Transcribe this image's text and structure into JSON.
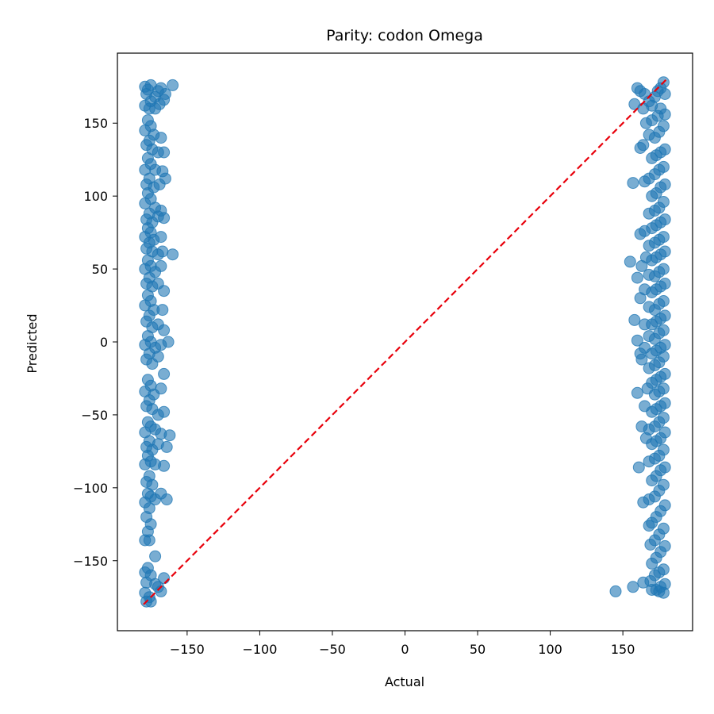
{
  "chart_data": {
    "type": "scatter",
    "title": "Parity: codon Omega",
    "xlabel": "Actual",
    "ylabel": "Predicted",
    "xlim": [
      -198,
      198
    ],
    "ylim": [
      -198,
      198
    ],
    "x_ticks": [
      -150,
      -100,
      -50,
      0,
      50,
      100,
      150
    ],
    "y_ticks": [
      -150,
      -100,
      -50,
      0,
      50,
      100,
      150
    ],
    "x_tick_labels": [
      "−150",
      "−100",
      "−50",
      "0",
      "50",
      "100",
      "150"
    ],
    "y_tick_labels": [
      "−150",
      "−100",
      "−50",
      "0",
      "50",
      "100",
      "150"
    ],
    "grid": false,
    "reference_line": {
      "x": [
        -180,
        180
      ],
      "y": [
        -180,
        180
      ],
      "color": "#e8000b",
      "style": "dashed"
    },
    "marker_color": "#1f77b4",
    "marker_alpha": 0.6,
    "series": [
      {
        "values": [
          [
            -179,
            175
          ],
          [
            -177,
            173
          ],
          [
            -175,
            176
          ],
          [
            -178,
            170
          ],
          [
            -172,
            168
          ],
          [
            -170,
            172
          ],
          [
            -168,
            174
          ],
          [
            -165,
            170
          ],
          [
            -160,
            176
          ],
          [
            -166,
            166
          ],
          [
            -175,
            165
          ],
          [
            -179,
            162
          ],
          [
            -176,
            160
          ],
          [
            -172,
            160
          ],
          [
            -169,
            163
          ],
          [
            -177,
            152
          ],
          [
            -175,
            148
          ],
          [
            -179,
            145
          ],
          [
            -173,
            142
          ],
          [
            -168,
            140
          ],
          [
            -176,
            138
          ],
          [
            -178,
            135
          ],
          [
            -174,
            132
          ],
          [
            -170,
            130
          ],
          [
            -166,
            130
          ],
          [
            -177,
            126
          ],
          [
            -175,
            122
          ],
          [
            -179,
            118
          ],
          [
            -172,
            118
          ],
          [
            -167,
            117
          ],
          [
            -176,
            112
          ],
          [
            -178,
            108
          ],
          [
            -173,
            106
          ],
          [
            -169,
            108
          ],
          [
            -165,
            112
          ],
          [
            -177,
            102
          ],
          [
            -175,
            98
          ],
          [
            -179,
            95
          ],
          [
            -172,
            92
          ],
          [
            -168,
            90
          ],
          [
            -176,
            88
          ],
          [
            -178,
            84
          ],
          [
            -174,
            82
          ],
          [
            -170,
            86
          ],
          [
            -166,
            85
          ],
          [
            -177,
            78
          ],
          [
            -175,
            75
          ],
          [
            -179,
            72
          ],
          [
            -173,
            70
          ],
          [
            -168,
            72
          ],
          [
            -176,
            68
          ],
          [
            -178,
            64
          ],
          [
            -174,
            62
          ],
          [
            -170,
            60
          ],
          [
            -167,
            62
          ],
          [
            -160,
            60
          ],
          [
            -177,
            56
          ],
          [
            -175,
            52
          ],
          [
            -179,
            50
          ],
          [
            -172,
            48
          ],
          [
            -168,
            52
          ],
          [
            -176,
            44
          ],
          [
            -178,
            40
          ],
          [
            -174,
            38
          ],
          [
            -170,
            40
          ],
          [
            -166,
            35
          ],
          [
            -177,
            32
          ],
          [
            -175,
            28
          ],
          [
            -179,
            25
          ],
          [
            -173,
            22
          ],
          [
            -167,
            22
          ],
          [
            -176,
            18
          ],
          [
            -178,
            14
          ],
          [
            -174,
            10
          ],
          [
            -170,
            12
          ],
          [
            -166,
            8
          ],
          [
            -177,
            4
          ],
          [
            -175,
            0
          ],
          [
            -179,
            -2
          ],
          [
            -172,
            -4
          ],
          [
            -168,
            -2
          ],
          [
            -163,
            0
          ],
          [
            -176,
            -8
          ],
          [
            -178,
            -12
          ],
          [
            -174,
            -15
          ],
          [
            -170,
            -10
          ],
          [
            -166,
            -22
          ],
          [
            -177,
            -26
          ],
          [
            -175,
            -30
          ],
          [
            -179,
            -34
          ],
          [
            -173,
            -36
          ],
          [
            -168,
            -32
          ],
          [
            -176,
            -40
          ],
          [
            -178,
            -44
          ],
          [
            -174,
            -46
          ],
          [
            -170,
            -50
          ],
          [
            -166,
            -48
          ],
          [
            -177,
            -55
          ],
          [
            -175,
            -58
          ],
          [
            -179,
            -62
          ],
          [
            -172,
            -60
          ],
          [
            -168,
            -63
          ],
          [
            -162,
            -64
          ],
          [
            -176,
            -68
          ],
          [
            -178,
            -72
          ],
          [
            -174,
            -74
          ],
          [
            -170,
            -70
          ],
          [
            -164,
            -72
          ],
          [
            -177,
            -78
          ],
          [
            -175,
            -82
          ],
          [
            -179,
            -84
          ],
          [
            -172,
            -84
          ],
          [
            -166,
            -85
          ],
          [
            -176,
            -92
          ],
          [
            -178,
            -96
          ],
          [
            -174,
            -98
          ],
          [
            -177,
            -104
          ],
          [
            -175,
            -106
          ],
          [
            -179,
            -110
          ],
          [
            -172,
            -108
          ],
          [
            -168,
            -104
          ],
          [
            -164,
            -108
          ],
          [
            -176,
            -114
          ],
          [
            -178,
            -120
          ],
          [
            -175,
            -125
          ],
          [
            -177,
            -130
          ],
          [
            -179,
            -136
          ],
          [
            -176,
            -136
          ],
          [
            -172,
            -147
          ],
          [
            -177,
            -155
          ],
          [
            -179,
            -158
          ],
          [
            -175,
            -160
          ],
          [
            -178,
            -165
          ],
          [
            -166,
            -162
          ],
          [
            -172,
            -166
          ],
          [
            -179,
            -172
          ],
          [
            -176,
            -175
          ],
          [
            -178,
            -178
          ],
          [
            -175,
            -178
          ],
          [
            -168,
            -171
          ],
          [
            -170,
            -168
          ],
          [
            178,
            178
          ],
          [
            176,
            174
          ],
          [
            179,
            170
          ],
          [
            174,
            172
          ],
          [
            172,
            168
          ],
          [
            168,
            165
          ],
          [
            165,
            170
          ],
          [
            162,
            172
          ],
          [
            160,
            174
          ],
          [
            158,
            163
          ],
          [
            164,
            160
          ],
          [
            170,
            162
          ],
          [
            176,
            160
          ],
          [
            179,
            156
          ],
          [
            174,
            155
          ],
          [
            170,
            152
          ],
          [
            166,
            150
          ],
          [
            178,
            148
          ],
          [
            175,
            144
          ],
          [
            172,
            140
          ],
          [
            168,
            142
          ],
          [
            164,
            135
          ],
          [
            162,
            133
          ],
          [
            179,
            132
          ],
          [
            176,
            130
          ],
          [
            173,
            128
          ],
          [
            170,
            126
          ],
          [
            178,
            120
          ],
          [
            175,
            118
          ],
          [
            172,
            115
          ],
          [
            168,
            112
          ],
          [
            165,
            110
          ],
          [
            157,
            109
          ],
          [
            179,
            108
          ],
          [
            176,
            106
          ],
          [
            173,
            102
          ],
          [
            170,
            100
          ],
          [
            178,
            96
          ],
          [
            175,
            92
          ],
          [
            172,
            90
          ],
          [
            168,
            88
          ],
          [
            179,
            84
          ],
          [
            176,
            82
          ],
          [
            173,
            80
          ],
          [
            170,
            78
          ],
          [
            165,
            76
          ],
          [
            162,
            74
          ],
          [
            178,
            72
          ],
          [
            175,
            70
          ],
          [
            172,
            68
          ],
          [
            168,
            66
          ],
          [
            179,
            62
          ],
          [
            176,
            60
          ],
          [
            173,
            58
          ],
          [
            170,
            56
          ],
          [
            166,
            58
          ],
          [
            163,
            52
          ],
          [
            155,
            55
          ],
          [
            178,
            50
          ],
          [
            175,
            48
          ],
          [
            172,
            45
          ],
          [
            168,
            46
          ],
          [
            160,
            44
          ],
          [
            179,
            40
          ],
          [
            176,
            38
          ],
          [
            173,
            36
          ],
          [
            170,
            34
          ],
          [
            165,
            36
          ],
          [
            162,
            30
          ],
          [
            178,
            28
          ],
          [
            175,
            26
          ],
          [
            172,
            22
          ],
          [
            168,
            24
          ],
          [
            179,
            18
          ],
          [
            176,
            16
          ],
          [
            173,
            14
          ],
          [
            170,
            12
          ],
          [
            158,
            15
          ],
          [
            165,
            12
          ],
          [
            178,
            8
          ],
          [
            175,
            6
          ],
          [
            172,
            2
          ],
          [
            168,
            4
          ],
          [
            160,
            1
          ],
          [
            179,
            -2
          ],
          [
            176,
            -4
          ],
          [
            173,
            -6
          ],
          [
            170,
            -8
          ],
          [
            165,
            -4
          ],
          [
            162,
            -8
          ],
          [
            178,
            -10
          ],
          [
            175,
            -14
          ],
          [
            172,
            -16
          ],
          [
            168,
            -18
          ],
          [
            163,
            -12
          ],
          [
            179,
            -22
          ],
          [
            176,
            -24
          ],
          [
            173,
            -26
          ],
          [
            170,
            -28
          ],
          [
            178,
            -32
          ],
          [
            175,
            -34
          ],
          [
            172,
            -36
          ],
          [
            167,
            -32
          ],
          [
            160,
            -35
          ],
          [
            179,
            -42
          ],
          [
            176,
            -44
          ],
          [
            173,
            -46
          ],
          [
            170,
            -48
          ],
          [
            165,
            -44
          ],
          [
            178,
            -52
          ],
          [
            175,
            -55
          ],
          [
            172,
            -58
          ],
          [
            168,
            -60
          ],
          [
            163,
            -58
          ],
          [
            179,
            -62
          ],
          [
            176,
            -66
          ],
          [
            173,
            -68
          ],
          [
            170,
            -70
          ],
          [
            166,
            -66
          ],
          [
            178,
            -74
          ],
          [
            175,
            -78
          ],
          [
            172,
            -80
          ],
          [
            168,
            -82
          ],
          [
            179,
            -86
          ],
          [
            176,
            -88
          ],
          [
            173,
            -92
          ],
          [
            170,
            -95
          ],
          [
            161,
            -86
          ],
          [
            178,
            -98
          ],
          [
            175,
            -102
          ],
          [
            172,
            -106
          ],
          [
            168,
            -108
          ],
          [
            164,
            -110
          ],
          [
            179,
            -112
          ],
          [
            176,
            -116
          ],
          [
            173,
            -120
          ],
          [
            170,
            -124
          ],
          [
            168,
            -126
          ],
          [
            178,
            -128
          ],
          [
            175,
            -132
          ],
          [
            172,
            -136
          ],
          [
            169,
            -139
          ],
          [
            179,
            -140
          ],
          [
            176,
            -144
          ],
          [
            173,
            -148
          ],
          [
            170,
            -152
          ],
          [
            178,
            -156
          ],
          [
            175,
            -158
          ],
          [
            172,
            -160
          ],
          [
            169,
            -164
          ],
          [
            164,
            -165
          ],
          [
            179,
            -166
          ],
          [
            176,
            -168
          ],
          [
            173,
            -170
          ],
          [
            170,
            -170
          ],
          [
            157,
            -168
          ],
          [
            145,
            -171
          ],
          [
            178,
            -172
          ],
          [
            175,
            -171
          ]
        ]
      }
    ]
  }
}
